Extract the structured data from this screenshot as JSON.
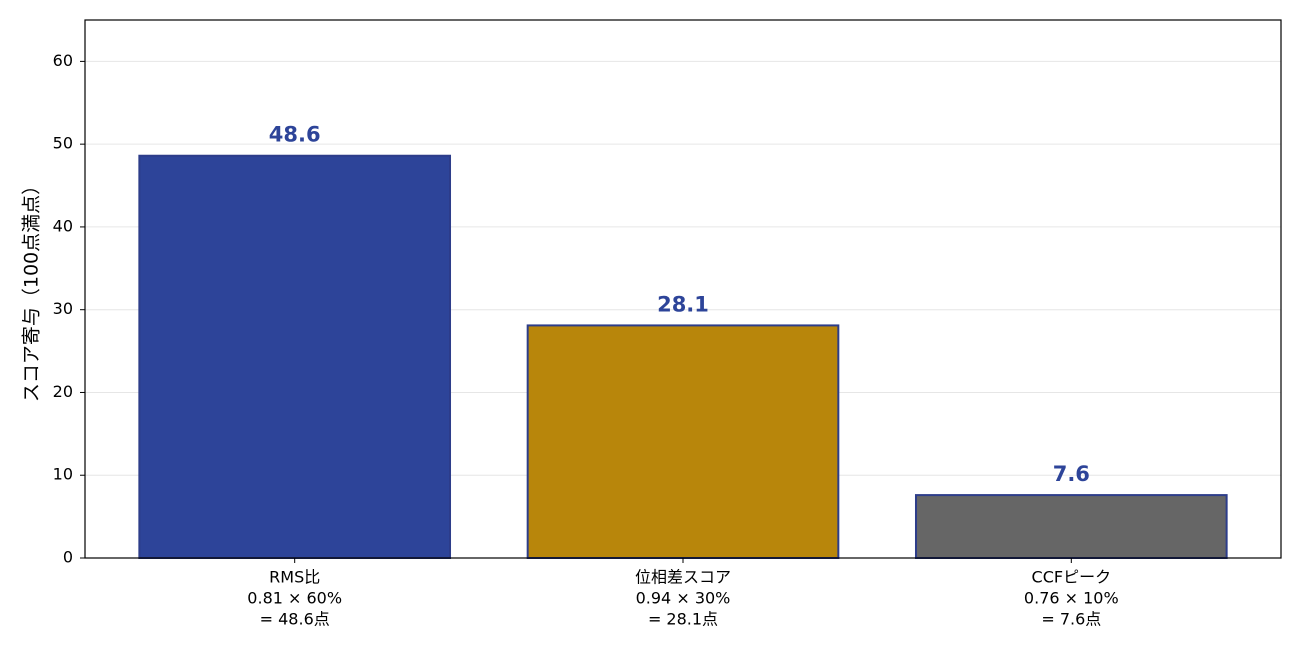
{
  "chart_data": {
    "type": "bar",
    "ylabel": "スコア寄与（100点満点）",
    "categories": [
      [
        "RMS比",
        "0.81 × 60%",
        "= 48.6点"
      ],
      [
        "位相差スコア",
        "0.94 × 30%",
        "= 28.1点"
      ],
      [
        "CCFピーク",
        "0.76 × 10%",
        "= 7.6点"
      ]
    ],
    "values": [
      48.6,
      28.1,
      7.6
    ],
    "colors": [
      "#2d4499",
      "#b8860b",
      "#666666"
    ],
    "edge_color": "#2d3d8a",
    "label_color": "#2d4499",
    "ylim": [
      0,
      65
    ],
    "yticks": [
      0,
      10,
      20,
      30,
      40,
      50,
      60
    ],
    "grid": true
  }
}
